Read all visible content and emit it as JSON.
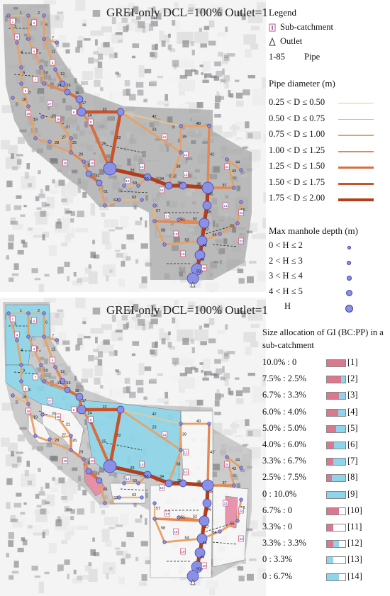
{
  "top_panel": {
    "title": "GREI-only DCL=100% Outlet=1",
    "legend": {
      "heading": "Legend",
      "items": [
        {
          "icon": "sub-catchment-marker",
          "label": "Sub-catchment"
        },
        {
          "icon": "outlet-triangle",
          "label": "Outlet"
        },
        {
          "icon_text": "1-85",
          "label": "Pipe"
        }
      ],
      "pipe_heading": "Pipe diameter (m)",
      "pipe_classes": [
        {
          "label": "0.25 < D ≤ 0.50",
          "color": "#f2c88a"
        },
        {
          "label": "0.50 < D ≤ 0.75",
          "color": "#eeb476"
        },
        {
          "label": "0.75 < D ≤ 1.00",
          "color": "#e9a064"
        },
        {
          "label": "1.00 < D ≤ 1.25",
          "color": "#e38852"
        },
        {
          "label": "1.25 < D ≤ 1.50",
          "color": "#d96d3d"
        },
        {
          "label": "1.50 < D ≤ 1.75",
          "color": "#c8532a"
        },
        {
          "label": "1.75 < D ≤ 2.00",
          "color": "#b23e1a"
        }
      ],
      "depth_heading": "Max manhole depth (m)",
      "depth_classes": [
        {
          "label": "0 < H ≤ 2"
        },
        {
          "label": "2 < H ≤ 3"
        },
        {
          "label": "3 < H ≤ 4"
        },
        {
          "label": "4 < H ≤ 5"
        },
        {
          "label": "H"
        }
      ]
    }
  },
  "bottom_panel": {
    "title": "GREI-only DCL=100% Outlet=1",
    "legend": {
      "heading_line1": "Size allocation of GI (BC:PP) in a",
      "heading_line2": "sub-catchment",
      "gi_classes": [
        {
          "label": "10.0% : 0",
          "id": "[1]",
          "bc": 100,
          "pp": 0
        },
        {
          "label": "7.5% : 2.5%",
          "id": "[2]",
          "bc": 75,
          "pp": 25
        },
        {
          "label": "6.7% : 3.3%",
          "id": "[3]",
          "bc": 67,
          "pp": 33
        },
        {
          "label": "6.0% : 4.0%",
          "id": "[4]",
          "bc": 60,
          "pp": 40
        },
        {
          "label": "5.0% : 5.0%",
          "id": "[5]",
          "bc": 50,
          "pp": 50
        },
        {
          "label": "4.0% : 6.0%",
          "id": "[6]",
          "bc": 40,
          "pp": 60
        },
        {
          "label": "3.3% : 6.7%",
          "id": "[7]",
          "bc": 33,
          "pp": 67
        },
        {
          "label": "2.5% : 7.5%",
          "id": "[8]",
          "bc": 25,
          "pp": 75
        },
        {
          "label": "0 : 10.0%",
          "id": "[9]",
          "bc": 0,
          "pp": 100
        },
        {
          "label": "6.7% : 0",
          "id": "[10]",
          "bc": 67,
          "pp": 0
        },
        {
          "label": "3.3% : 0",
          "id": "[11]",
          "bc": 33,
          "pp": 0
        },
        {
          "label": "3.3% : 3.3%",
          "id": "[12]",
          "bc": 33,
          "pp": 33
        },
        {
          "label": "0 : 3.3%",
          "id": "[13]",
          "bc": 0,
          "pp": 33
        },
        {
          "label": "0 : 6.7%",
          "id": "[14]",
          "bc": 0,
          "pp": 67
        }
      ],
      "colors": {
        "bc": "#d9788f",
        "pp": "#8fd3ec"
      }
    }
  },
  "map_labels": {
    "pipes": [
      "1",
      "2",
      "3",
      "4",
      "5",
      "6",
      "7",
      "8",
      "9",
      "10",
      "11",
      "12",
      "13",
      "14",
      "15",
      "16",
      "17",
      "18",
      "19",
      "20",
      "21",
      "22",
      "23",
      "24",
      "25",
      "26",
      "27",
      "28",
      "29",
      "30",
      "31",
      "32",
      "33",
      "34",
      "35",
      "36",
      "37",
      "38",
      "39",
      "40",
      "41",
      "42",
      "43",
      "44",
      "45",
      "46",
      "47",
      "48",
      "49",
      "50",
      "51",
      "52",
      "53",
      "54",
      "55",
      "56",
      "57",
      "58",
      "59",
      "60",
      "61",
      "62",
      "63",
      "64",
      "65",
      "66",
      "67",
      "68",
      "69",
      "70",
      "71",
      "72",
      "73",
      "74",
      "75",
      "76",
      "77",
      "78",
      "79",
      "80",
      "81",
      "82",
      "83",
      "84",
      "85"
    ],
    "subcatchments": [
      "1",
      "2",
      "3",
      "4",
      "5",
      "6",
      "7",
      "8",
      "9",
      "10",
      "11",
      "12",
      "13",
      "14",
      "15",
      "16",
      "17",
      "18",
      "19",
      "20",
      "21",
      "22",
      "23",
      "24",
      "25",
      "26",
      "27",
      "28",
      "29",
      "30"
    ]
  }
}
